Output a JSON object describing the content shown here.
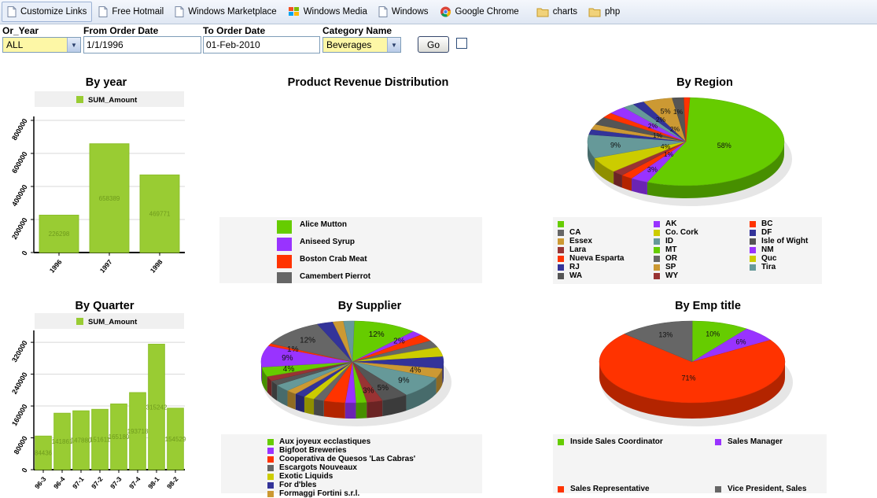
{
  "links_bar": {
    "items": [
      {
        "label": "Customize Links",
        "icon": "page-icon",
        "active": true
      },
      {
        "label": "Free Hotmail",
        "icon": "page-icon"
      },
      {
        "label": "Windows Marketplace",
        "icon": "page-icon"
      },
      {
        "label": "Windows Media",
        "icon": "windows-flag-icon"
      },
      {
        "label": "Windows",
        "icon": "page-icon"
      },
      {
        "label": "Google Chrome",
        "icon": "chrome-icon"
      },
      {
        "label": "charts",
        "icon": "folder-icon"
      },
      {
        "label": "php",
        "icon": "folder-icon"
      }
    ]
  },
  "filters": {
    "or_year": {
      "label": "Or_Year",
      "value": "ALL"
    },
    "from_date": {
      "label": "From Order Date",
      "value": "1/1/1996"
    },
    "to_date": {
      "label": "To Order Date",
      "value": "01-Feb-2010"
    },
    "category": {
      "label": "Category Name",
      "value": "Beverages"
    },
    "go_label": "Go"
  },
  "colors": {
    "bar": "#99cc33",
    "bar_dark": "#6e9a1c",
    "yellow_input": "#fdf7a6"
  },
  "chart_data": [
    {
      "id": "by_year",
      "type": "bar",
      "title": "By year",
      "legend": [
        "SUM_Amount"
      ],
      "categories": [
        "1996",
        "1997",
        "1998"
      ],
      "values": [
        226298,
        658389,
        469771
      ],
      "value_labels": [
        "226298",
        "658389",
        "469771"
      ],
      "yticks": [
        "0",
        "200000",
        "400000",
        "600000",
        "800000"
      ],
      "ylim": [
        0,
        800000
      ]
    },
    {
      "id": "product_revenue",
      "type": "pie",
      "title": "Product Revenue Distribution",
      "legend": [
        {
          "name": "Alice Mutton",
          "color": "#66cc00"
        },
        {
          "name": "Aniseed Syrup",
          "color": "#9933ff"
        },
        {
          "name": "Boston Crab Meat",
          "color": "#ff3300"
        },
        {
          "name": "Camembert Pierrot",
          "color": "#666666"
        }
      ]
    },
    {
      "id": "by_region",
      "type": "pie",
      "title": "By Region",
      "slices": [
        {
          "value": 58,
          "label": "58%",
          "color": "#66cc00"
        },
        {
          "value": 3,
          "label": "3%",
          "color": "#9933ff"
        },
        {
          "value": 2,
          "label": "",
          "color": "#ff3300"
        },
        {
          "value": 2,
          "label": "",
          "color": "#993333"
        },
        {
          "value": 6,
          "label": "",
          "color": "#cccc00"
        },
        {
          "value": 9,
          "label": "9%",
          "color": "#669999"
        },
        {
          "value": 2,
          "label": "",
          "color": "#333399"
        },
        {
          "value": 2,
          "label": "",
          "color": "#cc9933"
        },
        {
          "value": 3,
          "label": "",
          "color": "#555555"
        },
        {
          "value": 2,
          "label": "",
          "color": "#ff3300"
        },
        {
          "value": 3,
          "label": "",
          "color": "#9933ff"
        },
        {
          "value": 2,
          "label": "",
          "color": "#669999"
        },
        {
          "value": 2,
          "label": "",
          "color": "#333399"
        },
        {
          "value": 5,
          "label": "5%",
          "color": "#cc9933"
        },
        {
          "value": 2,
          "label": "",
          "color": "#555555"
        },
        {
          "value": 1,
          "label": "",
          "color": "#ff3300"
        }
      ],
      "extra_labels": [
        "2%",
        "2%",
        "1%",
        "4%",
        "1%",
        "2%",
        "1%"
      ],
      "legend": [
        {
          "name": "",
          "color": "#66cc00"
        },
        {
          "name": "AK",
          "color": "#9933ff"
        },
        {
          "name": "BC",
          "color": "#ff3300"
        },
        {
          "name": "CA",
          "color": "#666666"
        },
        {
          "name": "Co. Cork",
          "color": "#cccc00"
        },
        {
          "name": "DF",
          "color": "#333399"
        },
        {
          "name": "Essex",
          "color": "#cc9933"
        },
        {
          "name": "ID",
          "color": "#669999"
        },
        {
          "name": "Isle of Wight",
          "color": "#555555"
        },
        {
          "name": "Lara",
          "color": "#993333"
        },
        {
          "name": "MT",
          "color": "#66cc00"
        },
        {
          "name": "NM",
          "color": "#9933ff"
        },
        {
          "name": "Nueva Esparta",
          "color": "#ff3300"
        },
        {
          "name": "OR",
          "color": "#666666"
        },
        {
          "name": "Quc",
          "color": "#cccc00"
        },
        {
          "name": "RJ",
          "color": "#333399"
        },
        {
          "name": "SP",
          "color": "#cc9933"
        },
        {
          "name": "Tira",
          "color": "#669999"
        },
        {
          "name": "WA",
          "color": "#555555"
        },
        {
          "name": "WY",
          "color": "#993333"
        }
      ]
    },
    {
      "id": "by_quarter",
      "type": "bar",
      "title": "By Quarter",
      "legend": [
        "SUM_Amount"
      ],
      "categories": [
        "96-3",
        "96-4",
        "97-1",
        "97-2",
        "97-3",
        "97-4",
        "98-1",
        "98-2"
      ],
      "values": [
        84436,
        141861,
        147880,
        151611,
        165180,
        193718,
        315242,
        154529
      ],
      "value_labels": [
        "84436",
        "141861",
        "147880",
        "151611",
        "165180",
        "193718",
        "315242",
        "154529"
      ],
      "yticks": [
        "0",
        "80000",
        "160000",
        "240000",
        "320000"
      ],
      "ylim": [
        0,
        340000
      ]
    },
    {
      "id": "by_supplier",
      "type": "pie",
      "title": "By Supplier",
      "slices": [
        {
          "value": 12,
          "label": "12%",
          "color": "#66cc00"
        },
        {
          "value": 2,
          "label": "2%",
          "color": "#9933ff"
        },
        {
          "value": 3,
          "label": "",
          "color": "#ff3300"
        },
        {
          "value": 3,
          "label": "",
          "color": "#666666"
        },
        {
          "value": 4,
          "label": "",
          "color": "#cccc00"
        },
        {
          "value": 5,
          "label": "",
          "color": "#333399"
        },
        {
          "value": 4,
          "label": "4%",
          "color": "#cc9933"
        },
        {
          "value": 9,
          "label": "9%",
          "color": "#669999"
        },
        {
          "value": 5,
          "label": "5%",
          "color": "#555555"
        },
        {
          "value": 3,
          "label": "3%",
          "color": "#993333"
        },
        {
          "value": 2,
          "label": "",
          "color": "#66cc00"
        },
        {
          "value": 2,
          "label": "",
          "color": "#9933ff"
        },
        {
          "value": 4,
          "label": "",
          "color": "#ff3300"
        },
        {
          "value": 2,
          "label": "",
          "color": "#666666"
        },
        {
          "value": 2,
          "label": "",
          "color": "#cccc00"
        },
        {
          "value": 2,
          "label": "",
          "color": "#333399"
        },
        {
          "value": 2,
          "label": "",
          "color": "#cc9933"
        },
        {
          "value": 3,
          "label": "",
          "color": "#669999"
        },
        {
          "value": 2,
          "label": "",
          "color": "#555555"
        },
        {
          "value": 2,
          "label": "",
          "color": "#993333"
        },
        {
          "value": 4,
          "label": "4%",
          "color": "#66cc00"
        },
        {
          "value": 9,
          "label": "9%",
          "color": "#9933ff"
        },
        {
          "value": 1,
          "label": "1%",
          "color": "#ff3300"
        },
        {
          "value": 12,
          "label": "12%",
          "color": "#666666"
        },
        {
          "value": 3,
          "label": "",
          "color": "#333399"
        },
        {
          "value": 2,
          "label": "",
          "color": "#cc9933"
        },
        {
          "value": 2,
          "label": "",
          "color": "#669999"
        }
      ],
      "legend": [
        {
          "name": "Aux joyeux ecclastiques",
          "color": "#66cc00"
        },
        {
          "name": "Bigfoot Breweries",
          "color": "#9933ff"
        },
        {
          "name": "Cooperativa de Quesos 'Las Cabras'",
          "color": "#ff3300"
        },
        {
          "name": "Escargots Nouveaux",
          "color": "#666666"
        },
        {
          "name": "Exotic Liquids",
          "color": "#cccc00"
        },
        {
          "name": "For d'bles",
          "color": "#333399"
        },
        {
          "name": "Formaggi Fortini s.r.l.",
          "color": "#cc9933"
        }
      ]
    },
    {
      "id": "by_emp_title",
      "type": "pie",
      "title": "By Emp title",
      "slices": [
        {
          "value": 10,
          "label": "10%",
          "color": "#66cc00"
        },
        {
          "value": 6,
          "label": "6%",
          "color": "#9933ff"
        },
        {
          "value": 71,
          "label": "71%",
          "color": "#ff3300"
        },
        {
          "value": 13,
          "label": "13%",
          "color": "#666666"
        }
      ],
      "legend": [
        {
          "name": "Inside Sales Coordinator",
          "color": "#66cc00"
        },
        {
          "name": "Sales Manager",
          "color": "#9933ff"
        },
        {
          "name": "Sales Representative",
          "color": "#ff3300"
        },
        {
          "name": "Vice President, Sales",
          "color": "#666666"
        }
      ]
    }
  ]
}
